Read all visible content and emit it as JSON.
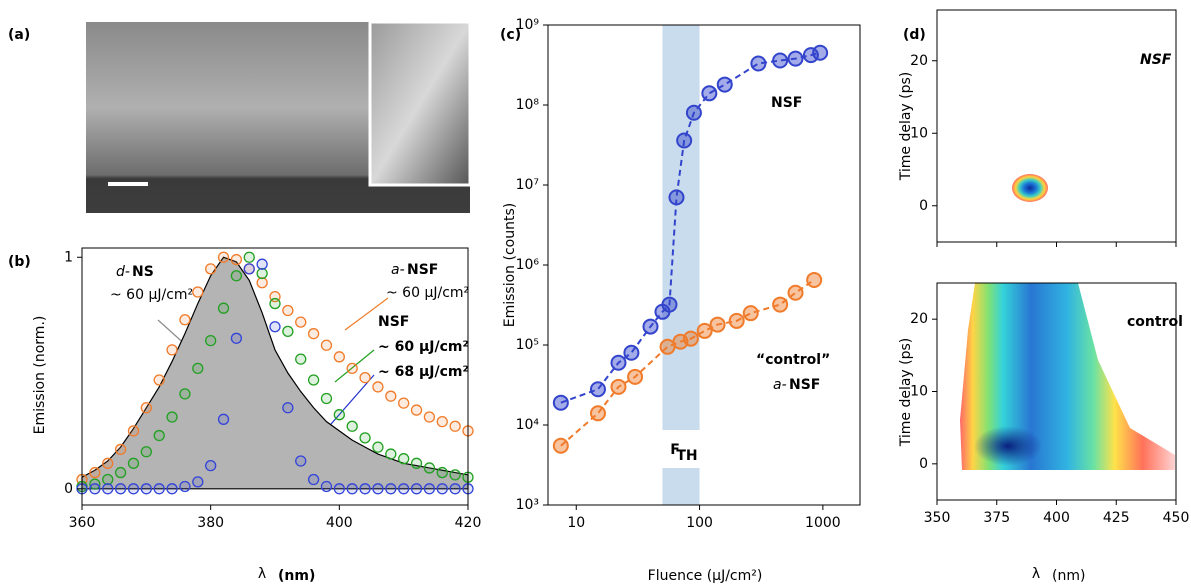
{
  "chart_data": [
    {
      "type": "image",
      "panel_label": "(a)"
    },
    {
      "type": "line",
      "panel_label": "(b)",
      "ylabel": "Emission (norm.)",
      "xlabel": "λ",
      "xlabel_unit": "(nm)",
      "xlim": [
        360,
        420
      ],
      "xticks": [
        360,
        380,
        400,
        420
      ],
      "ylim": [
        -0.07,
        1.04
      ],
      "yticks": [
        0,
        1
      ],
      "x": [
        360,
        362,
        364,
        366,
        368,
        370,
        372,
        374,
        376,
        378,
        380,
        382,
        384,
        386,
        388,
        390,
        392,
        394,
        396,
        398,
        400,
        402,
        404,
        406,
        408,
        410,
        412,
        414,
        416,
        418,
        420
      ],
      "series": [
        {
          "style": "area",
          "color": "#b4b4b4",
          "values": [
            0.05,
            0.08,
            0.12,
            0.18,
            0.26,
            0.35,
            0.44,
            0.55,
            0.67,
            0.8,
            0.92,
            1.0,
            0.98,
            0.9,
            0.76,
            0.6,
            0.5,
            0.42,
            0.35,
            0.29,
            0.25,
            0.21,
            0.18,
            0.15,
            0.13,
            0.11,
            0.1,
            0.09,
            0.08,
            0.07,
            0.06
          ]
        },
        {
          "style": "markers",
          "color": "#f07b2a",
          "values": [
            0.04,
            0.07,
            0.11,
            0.17,
            0.25,
            0.35,
            0.47,
            0.6,
            0.73,
            0.85,
            0.95,
            1.0,
            0.99,
            0.95,
            0.89,
            0.83,
            0.77,
            0.72,
            0.67,
            0.62,
            0.57,
            0.52,
            0.48,
            0.44,
            0.4,
            0.37,
            0.34,
            0.31,
            0.29,
            0.27,
            0.25
          ]
        },
        {
          "style": "markers",
          "color": "#22a022",
          "values": [
            0.01,
            0.02,
            0.04,
            0.07,
            0.11,
            0.16,
            0.23,
            0.31,
            0.41,
            0.52,
            0.64,
            0.78,
            0.92,
            1.0,
            0.93,
            0.8,
            0.68,
            0.56,
            0.47,
            0.39,
            0.32,
            0.27,
            0.22,
            0.18,
            0.15,
            0.13,
            0.11,
            0.09,
            0.07,
            0.06,
            0.05
          ]
        },
        {
          "style": "markers",
          "color": "#3344d8",
          "values": [
            0,
            0,
            0,
            0,
            0,
            0,
            0,
            0,
            0.01,
            0.03,
            0.1,
            0.3,
            0.65,
            0.95,
            0.97,
            0.7,
            0.35,
            0.12,
            0.04,
            0.01,
            0,
            0,
            0,
            0,
            0,
            0,
            0,
            0,
            0,
            0,
            0
          ]
        }
      ],
      "annotations": [
        {
          "text": "d-",
          "color": "#8c8c8c",
          "italic": true
        },
        {
          "text": "NS",
          "color": "#8c8c8c",
          "bold": true
        },
        {
          "text": "~ 60 μJ/cm²",
          "color": "#8c8c8c"
        },
        {
          "text": "a-",
          "color": "#f07b2a",
          "italic": true
        },
        {
          "text": "NSF",
          "color": "#f07b2a",
          "bold": true
        },
        {
          "text": "~ 60 μJ/cm²",
          "color": "#f07b2a"
        },
        {
          "text": "NSF",
          "color": "#22a022",
          "bold": true
        },
        {
          "text": "~ 60 μJ/cm²",
          "color": "#22a022",
          "bold": true
        },
        {
          "text": "~ 68 μJ/cm²",
          "color": "#2233cc",
          "bold": true
        }
      ]
    },
    {
      "type": "scatter",
      "panel_label": "(c)",
      "ylabel": "Emission (counts)",
      "xlabel": "Fluence (μJ/cm²)",
      "xscale": "log",
      "yscale": "log",
      "xlim": [
        5.9,
        2000
      ],
      "xticks": [
        10,
        100,
        1000
      ],
      "ylim": [
        1000,
        1000000000
      ],
      "yticks": [
        {
          "value": 1000,
          "label": "10³"
        },
        {
          "value": 10000,
          "label": "10⁴"
        },
        {
          "value": 100000,
          "label": "10⁵"
        },
        {
          "value": 1000000,
          "label": "10⁶"
        },
        {
          "value": 10000000,
          "label": "10⁷"
        },
        {
          "value": 100000000,
          "label": "10⁸"
        },
        {
          "value": 1000000000,
          "label": "10⁹"
        }
      ],
      "band": [
        50,
        100
      ],
      "band_color": "#c9dced",
      "band_label": "F",
      "band_label_sub": "TH",
      "series": [
        {
          "color": "#3344cc",
          "x": [
            7.5,
            15,
            22,
            28,
            40,
            50,
            57,
            65,
            75,
            90,
            120,
            160,
            300,
            450,
            600,
            800,
            950
          ],
          "values": [
            19000,
            28000,
            60000,
            80000,
            170000,
            260000,
            320000,
            7000000,
            36000000,
            80000000,
            140000000,
            180000000,
            330000000,
            360000000,
            380000000,
            420000000,
            450000000
          ]
        },
        {
          "color": "#f07b2a",
          "x": [
            7.5,
            15,
            22,
            30,
            55,
            70,
            85,
            110,
            140,
            200,
            260,
            450,
            600,
            850
          ],
          "values": [
            5500,
            14000,
            30000,
            40000,
            95000,
            110000,
            120000,
            150000,
            180000,
            200000,
            250000,
            320000,
            450000,
            650000
          ]
        }
      ],
      "annotations": [
        {
          "text": "NSF",
          "color": "#2233cc",
          "bold": true
        },
        {
          "text": "“control”",
          "color": "#f07b2a",
          "bold": true
        },
        {
          "text": "a-",
          "color": "#f07b2a",
          "italic": true
        },
        {
          "text": "NSF",
          "color": "#f07b2a",
          "bold": true
        }
      ]
    },
    {
      "type": "heatmap",
      "panel_label": "(d)",
      "ylabel": "Time delay  (ps)",
      "xlim": [
        350,
        450
      ],
      "xticks": [
        350,
        375,
        400,
        425,
        450
      ],
      "xticklabels": false,
      "ylim": [
        -5,
        27
      ],
      "yticks": [
        0,
        10,
        20
      ],
      "annotations": [
        {
          "text": "NSF",
          "color": "#2233cc",
          "bold": true,
          "italic": true
        }
      ]
    },
    {
      "type": "heatmap",
      "ylabel": "Time delay  (ps)",
      "xlabel": "λ",
      "xlabel_unit": "(nm)",
      "xlim": [
        350,
        450
      ],
      "xticks": [
        350,
        375,
        400,
        425,
        450
      ],
      "xticklabels": true,
      "ylim": [
        -5,
        25
      ],
      "yticks": [
        0,
        10,
        20
      ],
      "annotations": [
        {
          "text": "control",
          "color": "#f07b2a",
          "bold": true
        }
      ]
    }
  ]
}
